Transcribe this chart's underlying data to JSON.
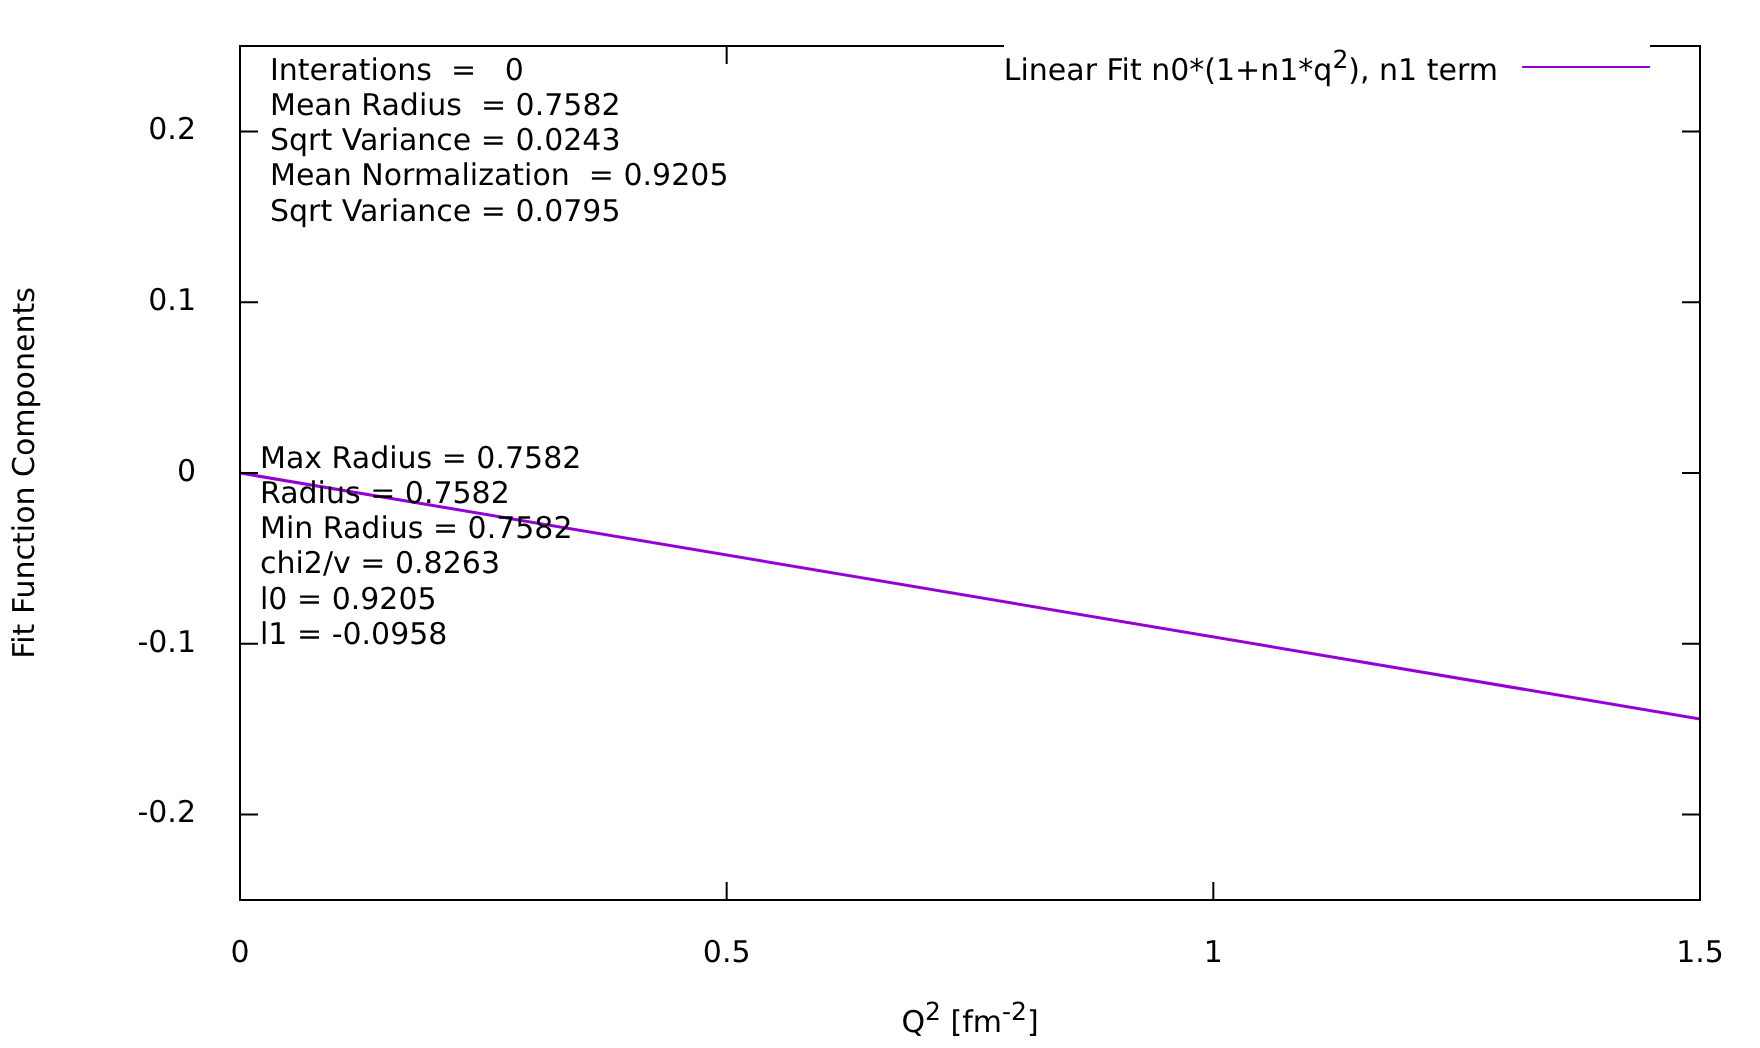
{
  "chart_data": {
    "type": "line",
    "xlabel": "Q$^{2}$ [fm$^{-2}$]",
    "ylabel": "Fit Function Components",
    "series": [
      {
        "name": "Linear Fit n0*(1+n1*q$^{2}$), n1 term",
        "color": "#9400d3",
        "x": [
          0,
          1.5
        ],
        "values": [
          0,
          -0.144
        ]
      }
    ],
    "xlim": [
      0,
      1.5
    ],
    "xticks": [
      0,
      0.5,
      1,
      1.5
    ],
    "ylim": [
      -0.25,
      0.25
    ],
    "yticks": [
      -0.2,
      -0.1,
      0,
      0.1,
      0.2
    ],
    "annotations": [
      "Interations  =   0\nMean Radius  = 0.7582\nSqrt Variance = 0.0243\nMean Normalization  = 0.9205\nSqrt Variance = 0.0795",
      "Max Radius = 0.7582\nRadius = 0.7582\nMin Radius = 0.7582\nchi2/v = 0.8263\nl0 = 0.9205\nl1 = -0.0958"
    ],
    "grid": false,
    "legend": "top right",
    "marker": "none",
    "line_style": "solid"
  }
}
